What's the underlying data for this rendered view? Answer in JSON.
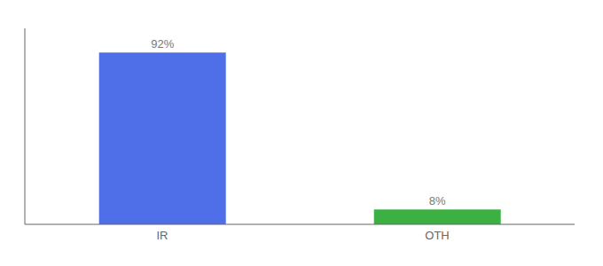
{
  "chart_data": {
    "type": "bar",
    "categories": [
      "IR",
      "OTH"
    ],
    "values": [
      92,
      8
    ],
    "value_labels": [
      "92%",
      "8%"
    ],
    "colors": [
      "#4f6fe8",
      "#3cb043"
    ],
    "ylim": [
      0,
      105
    ],
    "data_labels": true,
    "tick_labels": "x"
  }
}
